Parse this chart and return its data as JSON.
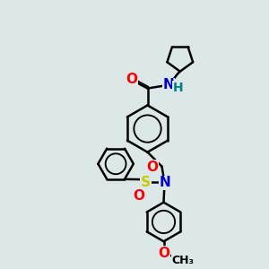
{
  "bg_color": "#dce8e8",
  "bond_color": "#000000",
  "bond_width": 1.8,
  "atom_colors": {
    "O": "#ff0000",
    "N": "#0000cd",
    "S": "#cccc00",
    "H": "#008080",
    "C": "#000000"
  },
  "font_size": 10,
  "fig_size": [
    3.0,
    3.0
  ],
  "dpi": 100
}
